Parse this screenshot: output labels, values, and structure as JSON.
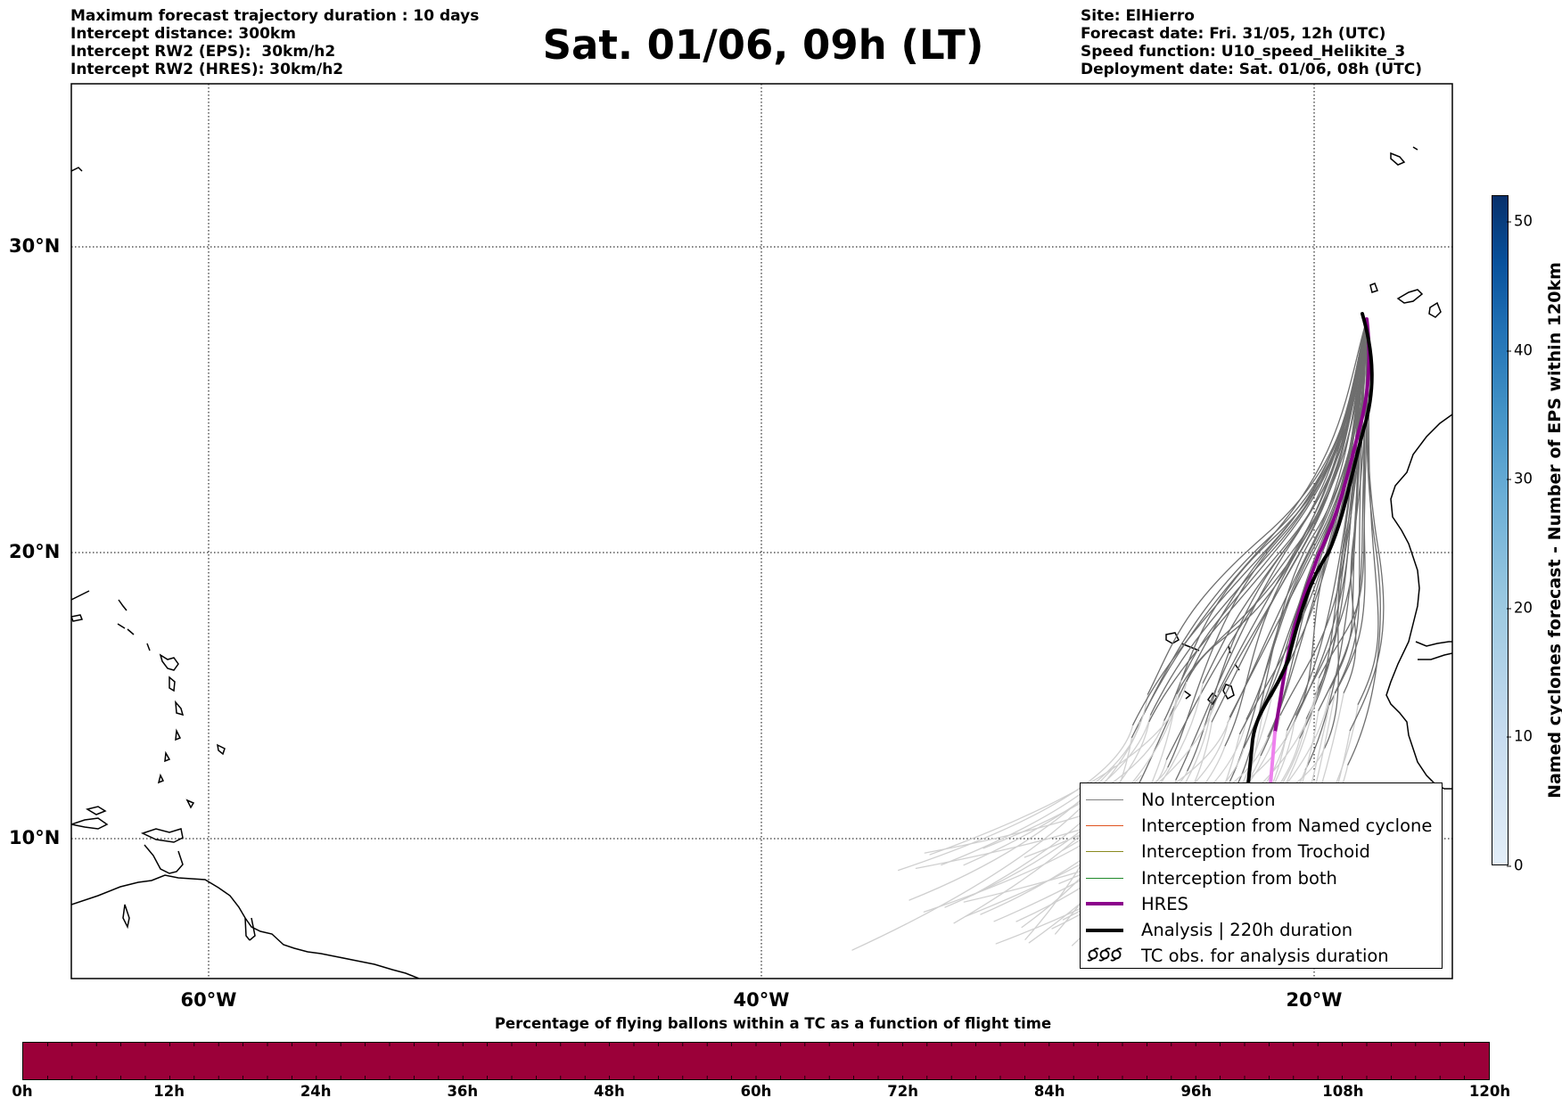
{
  "header": {
    "left_lines": [
      "Maximum forecast trajectory duration : 10 days",
      "Intercept distance: 300km",
      "Intercept RW2 (EPS):  30km/h2",
      "Intercept RW2 (HRES): 30km/h2"
    ],
    "title": "Sat. 01/06, 09h (LT)",
    "right_lines": [
      "Site: ElHierro",
      "Forecast date: Fri. 31/05, 12h (UTC)",
      "Speed function: U10_speed_Helikite_3",
      "Deployment date: Sat. 01/06, 08h (UTC)"
    ]
  },
  "map": {
    "lat_labels": [
      "30°N",
      "20°N",
      "10°N"
    ],
    "lon_labels": [
      "60°W",
      "40°W",
      "20°W"
    ],
    "legend": [
      {
        "label": "No Interception",
        "color": "#808080",
        "style": "thin"
      },
      {
        "label": "Interception from Named cyclone",
        "color": "#e0531f",
        "style": "thin"
      },
      {
        "label": "Interception from Trochoid",
        "color": "#8a8a20",
        "style": "thin"
      },
      {
        "label": "Interception from both",
        "color": "#1f8a2a",
        "style": "thin"
      },
      {
        "label": "HRES",
        "color": "#8b008b",
        "style": "thick"
      },
      {
        "label": "Analysis | 220h duration",
        "color": "#000000",
        "style": "thick"
      },
      {
        "label": "TC obs. for analysis duration",
        "color": "#000000",
        "style": "tc",
        "symbol": "•••"
      }
    ],
    "colors": {
      "ensemble": "#6e6e6e",
      "ensemble_faded": "#cfcfcf",
      "hres": "#8b008b",
      "hres_faded": "#ee82ee",
      "analysis": "#000000"
    }
  },
  "colorbar": {
    "label": "Named cyclones forecast - Number of EPS within 120km",
    "ticks": [
      "0",
      "10",
      "20",
      "30",
      "40",
      "50"
    ]
  },
  "timebar": {
    "title": "Percentage of flying ballons within a TC as a function of flight time",
    "ticks": [
      "0h",
      "12h",
      "24h",
      "36h",
      "48h",
      "60h",
      "72h",
      "84h",
      "96h",
      "108h",
      "120h"
    ],
    "fill_color": "#9b0039"
  }
}
